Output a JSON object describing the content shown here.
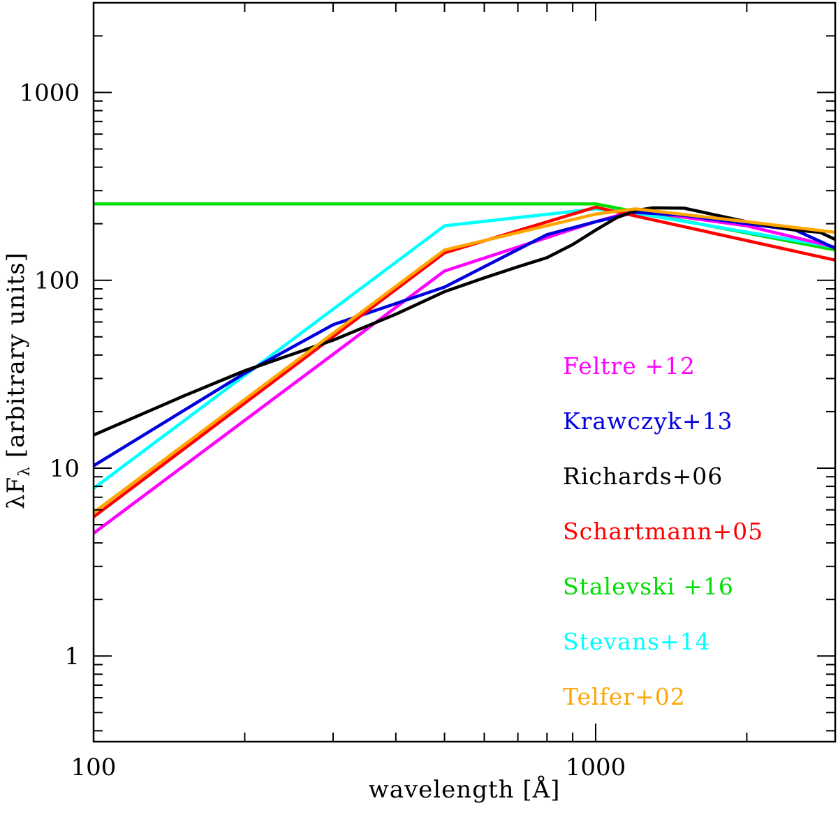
{
  "chart_data": {
    "type": "line",
    "title": "",
    "xlabel": "wavelength [Å]",
    "ylabel_main": "λF",
    "ylabel_sub": "λ",
    "ylabel_rest": " [arbitrary units]",
    "xscale": "log",
    "yscale": "log",
    "xlim": [
      100,
      3000
    ],
    "ylim": [
      0.35,
      3000
    ],
    "x_ticks": [
      {
        "value": 100,
        "label": "100"
      },
      {
        "value": 1000,
        "label": "1000"
      }
    ],
    "y_ticks": [
      {
        "value": 1,
        "label": "1"
      },
      {
        "value": 10,
        "label": "10"
      },
      {
        "value": 100,
        "label": "100"
      },
      {
        "value": 1000,
        "label": "1000"
      }
    ],
    "legend_position": "right-center",
    "series": [
      {
        "name": "Feltre +12",
        "color": "#ff00ff",
        "x": [
          100,
          500,
          1000,
          1200,
          2000,
          3000
        ],
        "y": [
          4.5,
          112,
          205,
          235,
          195,
          150
        ]
      },
      {
        "name": "Krawczyk+13",
        "color": "#0000dd",
        "x": [
          100,
          200,
          300,
          500,
          800,
          1000,
          1200,
          1500,
          2000,
          2500,
          3000
        ],
        "y": [
          10.3,
          32,
          58,
          92,
          175,
          205,
          230,
          222,
          200,
          185,
          148
        ]
      },
      {
        "name": "Richards+06",
        "color": "#000000",
        "x": [
          100,
          150,
          200,
          300,
          400,
          500,
          600,
          700,
          800,
          900,
          1000,
          1100,
          1200,
          1300,
          1500,
          2000,
          2500,
          2800,
          3000
        ],
        "y": [
          15,
          24,
          33,
          48,
          66,
          87,
          103,
          118,
          132,
          155,
          185,
          215,
          235,
          243,
          242,
          205,
          185,
          180,
          165
        ]
      },
      {
        "name": "Schartmann+05",
        "color": "#ff0000",
        "x": [
          100,
          500,
          1000,
          1200,
          3000
        ],
        "y": [
          5.5,
          140,
          245,
          220,
          128
        ]
      },
      {
        "name": "Stalevski +16",
        "color": "#00dd00",
        "x": [
          100,
          1000,
          1200,
          3000
        ],
        "y": [
          255,
          255,
          232,
          145
        ]
      },
      {
        "name": "Stevans+14",
        "color": "#00ffff",
        "x": [
          100,
          500,
          1000,
          1200,
          3000
        ],
        "y": [
          7.8,
          195,
          240,
          228,
          150
        ]
      },
      {
        "name": "Telfer+02",
        "color": "#ffa500",
        "x": [
          100,
          500,
          1000,
          1200,
          2000,
          3000
        ],
        "y": [
          5.8,
          145,
          225,
          240,
          205,
          180
        ]
      }
    ],
    "legend_order": [
      "Feltre +12",
      "Krawczyk+13",
      "Richards+06",
      "Schartmann+05",
      "Stalevski +16",
      "Stevans+14",
      "Telfer+02"
    ]
  }
}
